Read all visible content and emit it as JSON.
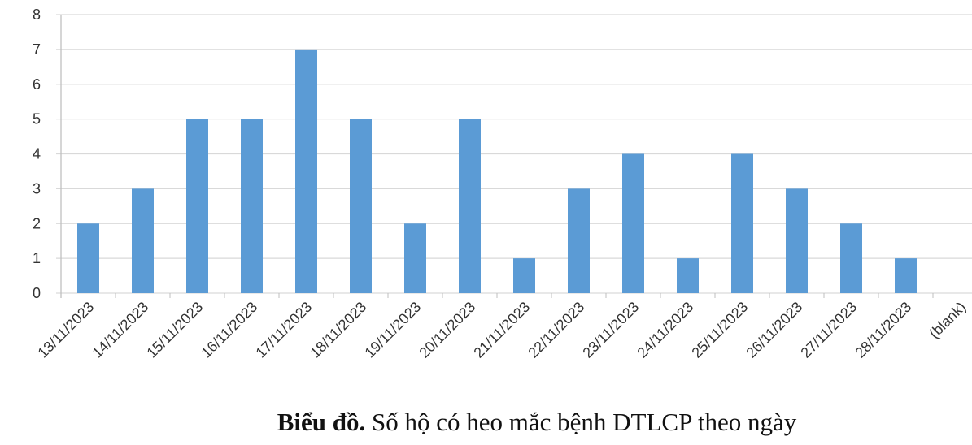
{
  "chart_data": {
    "type": "bar",
    "categories": [
      "13/11/2023",
      "14/11/2023",
      "15/11/2023",
      "16/11/2023",
      "17/11/2023",
      "18/11/2023",
      "19/11/2023",
      "20/11/2023",
      "21/11/2023",
      "22/11/2023",
      "23/11/2023",
      "24/11/2023",
      "25/11/2023",
      "26/11/2023",
      "27/11/2023",
      "28/11/2023",
      "(blank)"
    ],
    "values": [
      2,
      3,
      5,
      5,
      7,
      5,
      2,
      5,
      1,
      3,
      4,
      1,
      4,
      3,
      2,
      1,
      null
    ],
    "color": "#5b9bd5",
    "ylim": [
      0,
      8
    ],
    "yticks": [
      0,
      1,
      2,
      3,
      4,
      5,
      6,
      7,
      8
    ],
    "grid": true,
    "caption": {
      "label": "Biểu đồ.",
      "text": "Số hộ có heo mắc bệnh DTLCP theo ngày"
    }
  }
}
